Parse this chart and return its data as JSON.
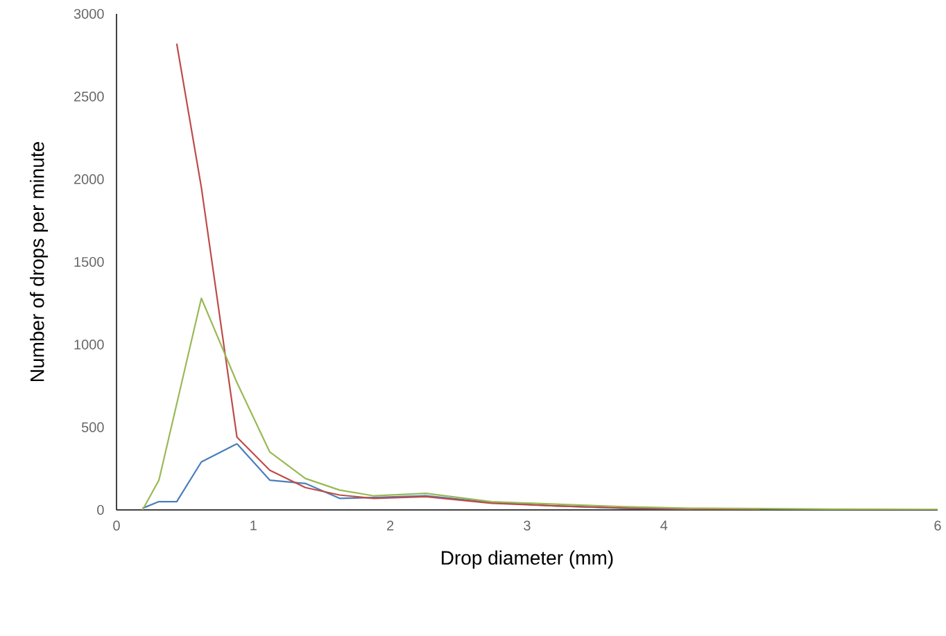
{
  "chart_data": {
    "type": "line",
    "xlabel": "Drop diameter (mm)",
    "ylabel": "Number of drops per minute",
    "x": [
      0.19,
      0.31,
      0.44,
      0.62,
      0.88,
      1.12,
      1.38,
      1.63,
      1.88,
      2.26,
      2.74,
      3.2,
      3.7,
      4.2,
      4.7
    ],
    "series": [
      {
        "color": "#4a7ebb",
        "values": [
          10,
          50,
          50,
          290,
          400,
          180,
          160,
          70,
          75,
          85,
          45,
          25,
          10,
          5,
          null
        ]
      },
      {
        "color": "#be4b48",
        "values": [
          null,
          null,
          2820,
          1950,
          440,
          240,
          135,
          90,
          70,
          80,
          40,
          25,
          12,
          6,
          5
        ]
      },
      {
        "color": "#98b954",
        "x": [
          0.19,
          0.31,
          0.62,
          0.88,
          1.12,
          1.38,
          1.63,
          1.88,
          2.26,
          2.74,
          3.2,
          3.7,
          4.2,
          4.7,
          5.2,
          6
        ],
        "values": [
          0,
          180,
          1280,
          770,
          350,
          190,
          120,
          85,
          100,
          50,
          35,
          20,
          10,
          8,
          5,
          3
        ]
      }
    ],
    "xlim": [
      0,
      6
    ],
    "xticks": [
      0,
      1,
      2,
      3,
      4,
      6
    ],
    "ylim": [
      0,
      3000
    ],
    "yticks": [
      0,
      500,
      1000,
      1500,
      2000,
      2500,
      3000
    ],
    "grid": false,
    "marker": "none",
    "line_style": "solid"
  }
}
